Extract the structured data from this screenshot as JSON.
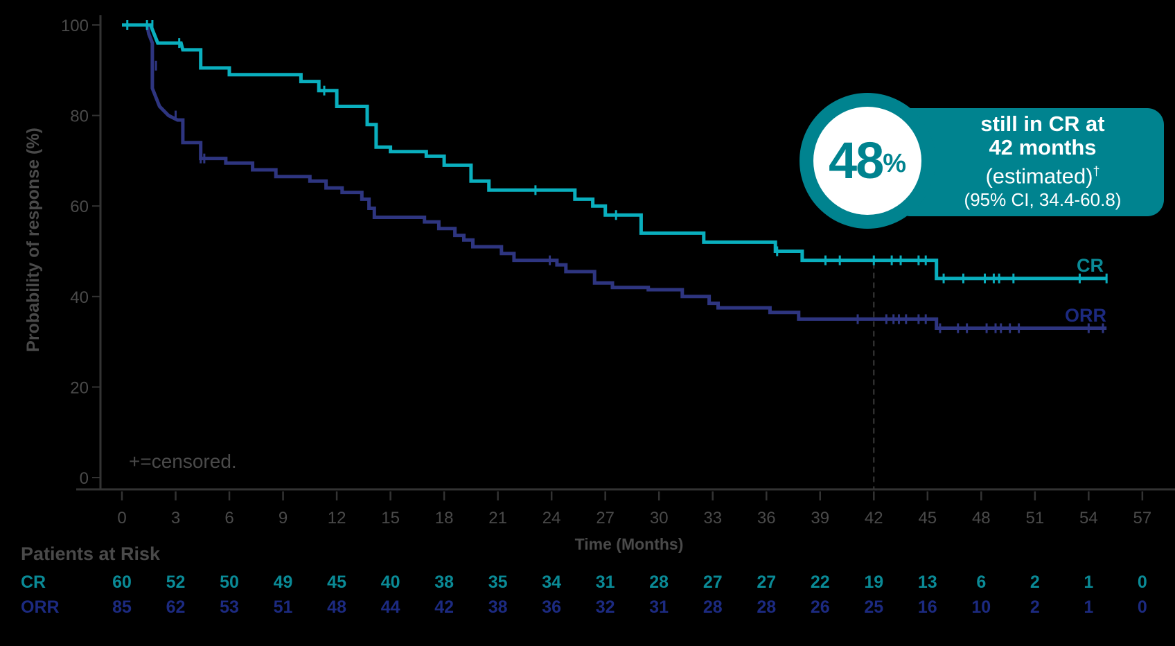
{
  "colors": {
    "cr": "#0aafbe",
    "orr": "#2e3580",
    "cr_text": "#0a8a96",
    "orr_text": "#1c2a80",
    "axis": "#333333",
    "label": "#4a4a4a",
    "callout": "#00838f"
  },
  "chart_data": {
    "type": "line",
    "subtype": "kaplan-meier step",
    "title": "",
    "xlabel": "Time (Months)",
    "ylabel": "Probability of response (%)",
    "xlim": [
      0,
      57
    ],
    "ylim": [
      0,
      100
    ],
    "x_ticks": [
      0,
      3,
      6,
      9,
      12,
      15,
      18,
      21,
      24,
      27,
      30,
      33,
      36,
      39,
      42,
      45,
      48,
      51,
      54,
      57
    ],
    "y_ticks": [
      0,
      20,
      40,
      60,
      80,
      100
    ],
    "grid": false,
    "reference_line": {
      "x": 42,
      "style": "dashed"
    },
    "annotation": "+=censored.",
    "series": [
      {
        "name": "CR",
        "color": "#0aafbe",
        "steps": [
          [
            0,
            100
          ],
          [
            1.6,
            100
          ],
          [
            1.8,
            98
          ],
          [
            2.0,
            96
          ],
          [
            3.3,
            96
          ],
          [
            3.4,
            94.5
          ],
          [
            4.4,
            94.5
          ],
          [
            4.4,
            90.5
          ],
          [
            6.0,
            90.5
          ],
          [
            6.0,
            89
          ],
          [
            10.0,
            89
          ],
          [
            10.0,
            87.5
          ],
          [
            11.0,
            87.5
          ],
          [
            11.0,
            85.5
          ],
          [
            12.0,
            85.5
          ],
          [
            12.0,
            82
          ],
          [
            13.7,
            82
          ],
          [
            13.7,
            78
          ],
          [
            14.2,
            78
          ],
          [
            14.2,
            73
          ],
          [
            15.0,
            73
          ],
          [
            15.0,
            72
          ],
          [
            17.0,
            72
          ],
          [
            17.0,
            71
          ],
          [
            18.0,
            71
          ],
          [
            18.0,
            69
          ],
          [
            19.5,
            69
          ],
          [
            19.5,
            65.5
          ],
          [
            20.5,
            65.5
          ],
          [
            20.5,
            63.5
          ],
          [
            25.3,
            63.5
          ],
          [
            25.3,
            61.5
          ],
          [
            26.3,
            61.5
          ],
          [
            26.3,
            60
          ],
          [
            27.0,
            60
          ],
          [
            27.0,
            58
          ],
          [
            29.0,
            58
          ],
          [
            29.0,
            54
          ],
          [
            32.5,
            54
          ],
          [
            32.5,
            52
          ],
          [
            36.5,
            52
          ],
          [
            36.5,
            50
          ],
          [
            38.0,
            50
          ],
          [
            38.0,
            48
          ],
          [
            45.5,
            48
          ],
          [
            45.5,
            44
          ],
          [
            55.0,
            44
          ]
        ],
        "censored": [
          [
            0.3,
            100
          ],
          [
            1.4,
            100
          ],
          [
            1.7,
            100
          ],
          [
            3.2,
            96
          ],
          [
            11.3,
            85.5
          ],
          [
            23.1,
            63.5
          ],
          [
            27.6,
            58
          ],
          [
            36.6,
            50
          ],
          [
            39.3,
            48
          ],
          [
            40.1,
            48
          ],
          [
            42.0,
            48
          ],
          [
            43.0,
            48
          ],
          [
            43.5,
            48
          ],
          [
            44.5,
            48
          ],
          [
            44.9,
            48
          ],
          [
            45.9,
            44
          ],
          [
            47.0,
            44
          ],
          [
            48.2,
            44
          ],
          [
            48.7,
            44
          ],
          [
            49.0,
            44
          ],
          [
            49.8,
            44
          ],
          [
            53.5,
            44
          ],
          [
            55.0,
            44
          ]
        ],
        "end_label": "CR"
      },
      {
        "name": "ORR",
        "color": "#2e3580",
        "steps": [
          [
            0,
            100
          ],
          [
            1.4,
            100
          ],
          [
            1.5,
            98
          ],
          [
            1.7,
            96
          ],
          [
            1.7,
            86
          ],
          [
            1.9,
            84
          ],
          [
            2.1,
            82
          ],
          [
            2.6,
            80
          ],
          [
            3.1,
            79
          ],
          [
            3.4,
            79
          ],
          [
            3.4,
            74
          ],
          [
            4.4,
            74
          ],
          [
            4.4,
            70.5
          ],
          [
            5.8,
            70.5
          ],
          [
            5.8,
            69.5
          ],
          [
            7.3,
            69.5
          ],
          [
            7.3,
            68
          ],
          [
            8.6,
            68
          ],
          [
            8.6,
            66.5
          ],
          [
            10.5,
            66.5
          ],
          [
            10.5,
            65.5
          ],
          [
            11.4,
            65.5
          ],
          [
            11.4,
            64
          ],
          [
            12.3,
            64
          ],
          [
            12.3,
            63
          ],
          [
            13.4,
            63
          ],
          [
            13.4,
            61.5
          ],
          [
            13.8,
            61.5
          ],
          [
            13.8,
            59.5
          ],
          [
            14.1,
            59.5
          ],
          [
            14.1,
            57.5
          ],
          [
            16.9,
            57.5
          ],
          [
            16.9,
            56.5
          ],
          [
            17.7,
            56.5
          ],
          [
            17.7,
            55
          ],
          [
            18.6,
            55
          ],
          [
            18.6,
            53.5
          ],
          [
            19.1,
            53.5
          ],
          [
            19.1,
            52.5
          ],
          [
            19.6,
            52.5
          ],
          [
            19.6,
            51
          ],
          [
            21.2,
            51
          ],
          [
            21.2,
            49.5
          ],
          [
            21.9,
            49.5
          ],
          [
            21.9,
            48
          ],
          [
            24.3,
            48
          ],
          [
            24.3,
            47
          ],
          [
            24.8,
            47
          ],
          [
            24.8,
            45.5
          ],
          [
            26.4,
            45.5
          ],
          [
            26.4,
            43
          ],
          [
            27.4,
            43
          ],
          [
            27.4,
            42
          ],
          [
            29.4,
            42
          ],
          [
            29.4,
            41.5
          ],
          [
            31.3,
            41.5
          ],
          [
            31.3,
            40
          ],
          [
            32.8,
            40
          ],
          [
            32.8,
            38.5
          ],
          [
            33.3,
            38.5
          ],
          [
            33.3,
            37.5
          ],
          [
            36.2,
            37.5
          ],
          [
            36.2,
            36.5
          ],
          [
            37.8,
            36.5
          ],
          [
            37.8,
            35
          ],
          [
            45.5,
            35
          ],
          [
            45.5,
            33
          ],
          [
            55.0,
            33
          ]
        ],
        "censored": [
          [
            1.9,
            91
          ],
          [
            3.0,
            80
          ],
          [
            4.4,
            70.5
          ],
          [
            4.6,
            70.5
          ],
          [
            23.9,
            48
          ],
          [
            41.1,
            35
          ],
          [
            42.7,
            35
          ],
          [
            43.1,
            35
          ],
          [
            43.4,
            35
          ],
          [
            43.8,
            35
          ],
          [
            44.5,
            35
          ],
          [
            44.9,
            35
          ],
          [
            45.7,
            33
          ],
          [
            46.7,
            33
          ],
          [
            47.2,
            33
          ],
          [
            48.3,
            33
          ],
          [
            48.8,
            33
          ],
          [
            49.1,
            33
          ],
          [
            49.6,
            33
          ],
          [
            50.1,
            33
          ],
          [
            54.0,
            33
          ],
          [
            54.8,
            33
          ]
        ],
        "end_label": "ORR"
      }
    ],
    "callout": {
      "value": "48",
      "unit": "%",
      "line1": "still in CR at",
      "line2": "42 months",
      "line3": "(estimated)",
      "line3_mark": "†",
      "line4": "(95% CI, 34.4-60.8)"
    },
    "patients_at_risk": {
      "title": "Patients at Risk",
      "times": [
        0,
        3,
        6,
        9,
        12,
        15,
        18,
        21,
        24,
        27,
        30,
        33,
        36,
        39,
        42,
        45,
        48,
        51,
        54,
        57
      ],
      "rows": [
        {
          "name": "CR",
          "values": [
            60,
            52,
            50,
            49,
            45,
            40,
            38,
            35,
            34,
            31,
            28,
            27,
            27,
            22,
            19,
            13,
            6,
            2,
            1,
            0
          ]
        },
        {
          "name": "ORR",
          "values": [
            85,
            62,
            53,
            51,
            48,
            44,
            42,
            38,
            36,
            32,
            31,
            28,
            28,
            26,
            25,
            16,
            10,
            2,
            1,
            0
          ]
        }
      ]
    }
  }
}
